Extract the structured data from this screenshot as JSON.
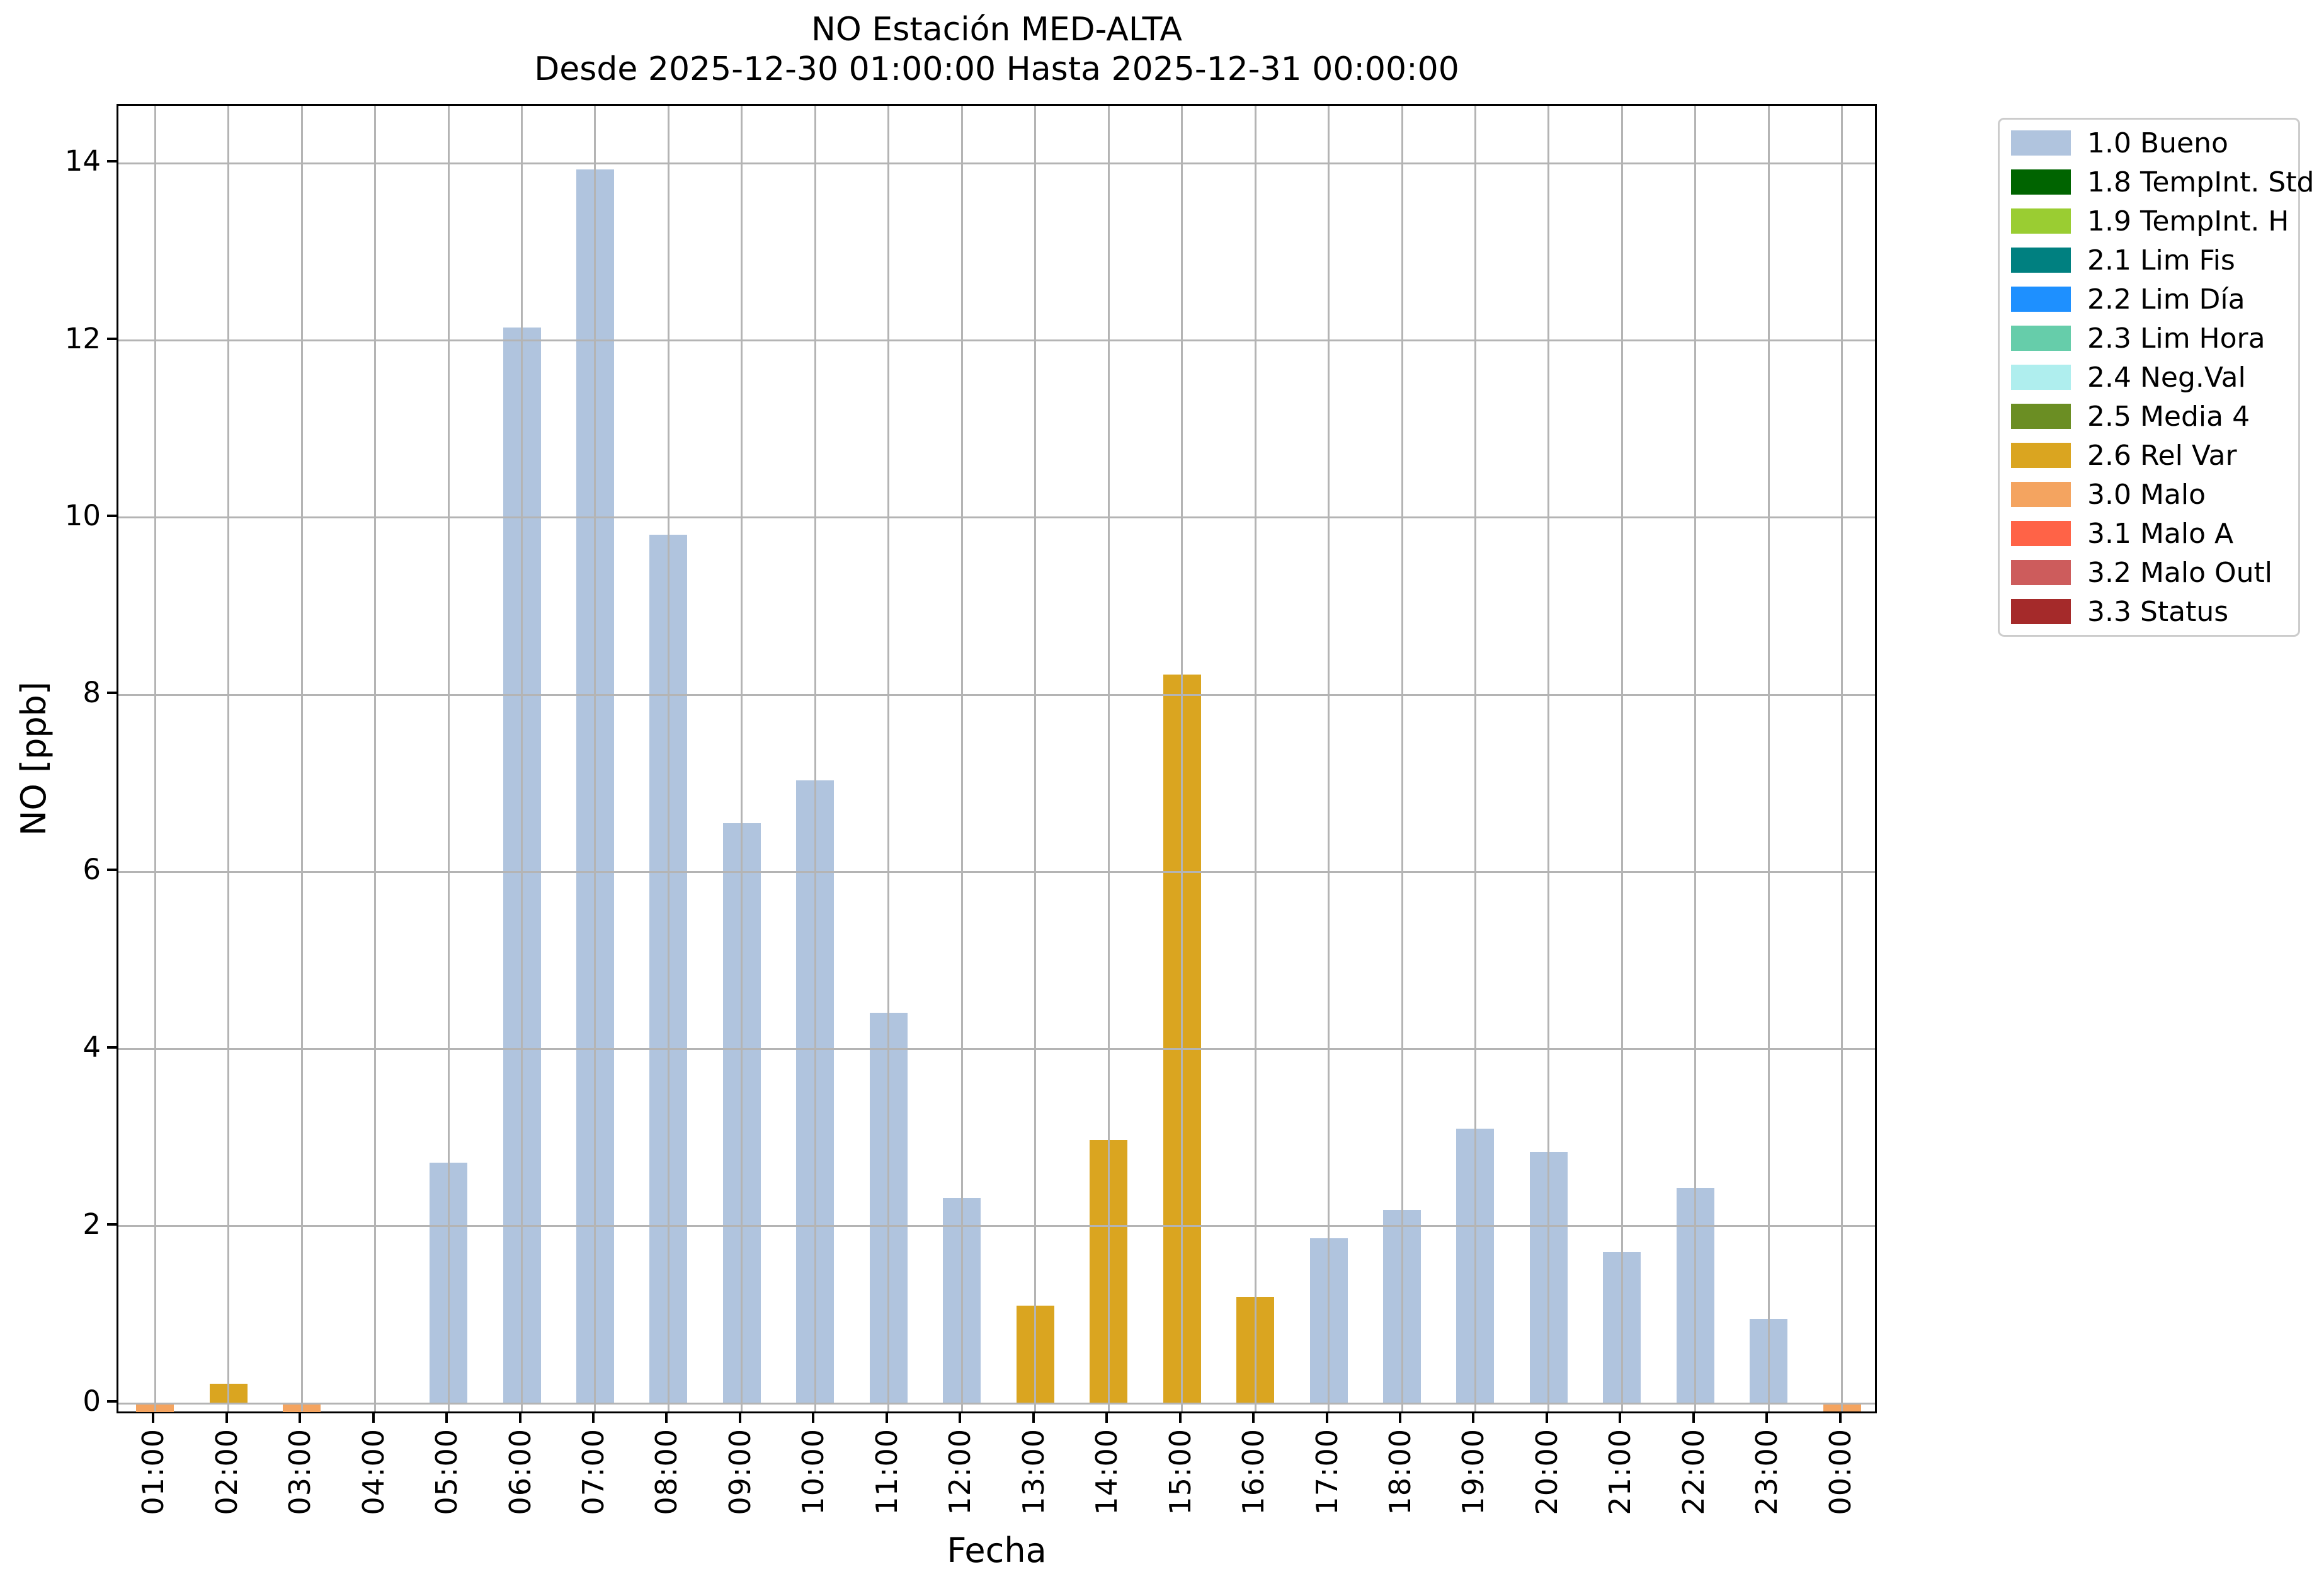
{
  "title": {
    "line1": "NO Estación MED-ALTA",
    "line2": "Desde 2025-12-30 01:00:00 Hasta 2025-12-31 00:00:00"
  },
  "chart_data": {
    "type": "bar",
    "title": "NO Estación MED-ALTA",
    "subtitle": "Desde 2025-12-30 01:00:00 Hasta 2025-12-31 00:00:00",
    "xlabel": "Fecha",
    "ylabel": "NO [ppb]",
    "ylim": [
      -0.135,
      14.65
    ],
    "yticks": [
      0,
      2,
      4,
      6,
      8,
      10,
      12,
      14
    ],
    "grid": true,
    "grid_color": "#b4b4b4",
    "background": "#ffffff",
    "legend_position": "outside-upper-right",
    "categories": [
      "01:00",
      "02:00",
      "03:00",
      "04:00",
      "05:00",
      "06:00",
      "07:00",
      "08:00",
      "09:00",
      "10:00",
      "11:00",
      "12:00",
      "13:00",
      "14:00",
      "15:00",
      "16:00",
      "17:00",
      "18:00",
      "19:00",
      "20:00",
      "21:00",
      "22:00",
      "23:00",
      "00:00"
    ],
    "series": [
      {
        "name": "NO [ppb]",
        "values": [
          -0.1,
          0.22,
          -0.1,
          0,
          2.72,
          12.15,
          13.93,
          9.81,
          6.55,
          7.03,
          4.41,
          2.32,
          1.1,
          2.97,
          8.23,
          1.2,
          1.86,
          2.18,
          3.1,
          2.84,
          1.71,
          2.43,
          0.95,
          -0.09
        ],
        "status": [
          "3.0",
          "2.6",
          "3.0",
          "1.0",
          "1.0",
          "1.0",
          "1.0",
          "1.0",
          "1.0",
          "1.0",
          "1.0",
          "1.0",
          "2.6",
          "2.6",
          "2.6",
          "2.6",
          "1.0",
          "1.0",
          "1.0",
          "1.0",
          "1.0",
          "1.0",
          "1.0",
          "3.0"
        ]
      }
    ],
    "status_colors": {
      "1.0": "#b0c4de",
      "1.8": "#006400",
      "1.9": "#9acd32",
      "2.1": "#008080",
      "2.2": "#1e90ff",
      "2.3": "#66cdaa",
      "2.4": "#afeeee",
      "2.5": "#6b8e23",
      "2.6": "#daa520",
      "3.0": "#f4a460",
      "3.1": "#ff6347",
      "3.2": "#cd5c5c",
      "3.3": "#a52a2a"
    },
    "legend": [
      {
        "code": "1.0",
        "label": "1.0 Bueno",
        "color": "#b0c4de"
      },
      {
        "code": "1.8",
        "label": "1.8 TempInt. Std",
        "color": "#006400"
      },
      {
        "code": "1.9",
        "label": "1.9 TempInt. H",
        "color": "#9acd32"
      },
      {
        "code": "2.1",
        "label": "2.1 Lim Fis",
        "color": "#008080"
      },
      {
        "code": "2.2",
        "label": "2.2 Lim Día",
        "color": "#1e90ff"
      },
      {
        "code": "2.3",
        "label": "2.3 Lim Hora",
        "color": "#66cdaa"
      },
      {
        "code": "2.4",
        "label": "2.4 Neg.Val",
        "color": "#afeeee"
      },
      {
        "code": "2.5",
        "label": "2.5 Media 4",
        "color": "#6b8e23"
      },
      {
        "code": "2.6",
        "label": "2.6 Rel Var",
        "color": "#daa520"
      },
      {
        "code": "3.0",
        "label": "3.0 Malo",
        "color": "#f4a460"
      },
      {
        "code": "3.1",
        "label": "3.1 Malo A",
        "color": "#ff6347"
      },
      {
        "code": "3.2",
        "label": "3.2 Malo Outl",
        "color": "#cd5c5c"
      },
      {
        "code": "3.3",
        "label": "3.3 Status",
        "color": "#a52a2a"
      }
    ]
  }
}
